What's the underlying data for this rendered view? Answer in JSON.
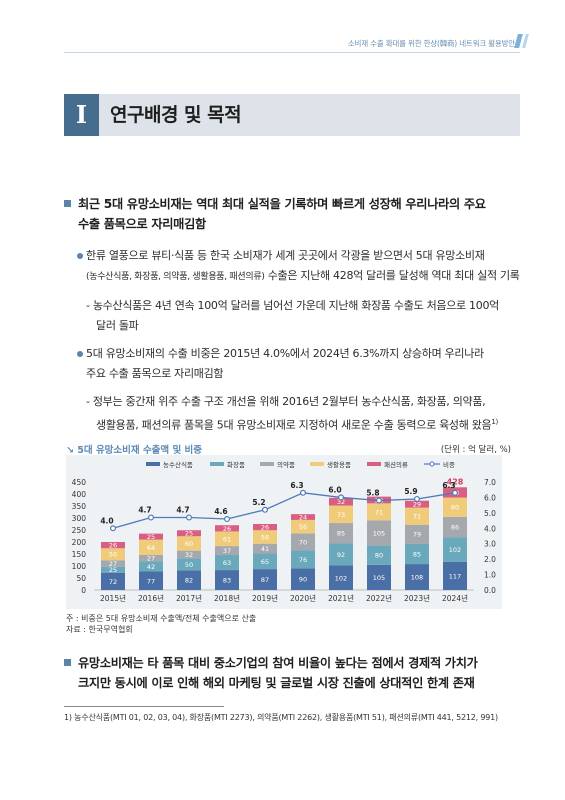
{
  "header": {
    "running_title": "소비재 수출 확대를 위한 한상(韓商) 네트워크 활용방안"
  },
  "section": {
    "number": "I",
    "title": "연구배경 및 목적"
  },
  "point1": {
    "line1": "최근 5대 유망소비재는 역대 최대 실적을 기록하며 빠르게 성장해 우리나라의 주요",
    "line2": "수출 품목으로 자리매김함",
    "sub1": {
      "line1": "한류 열풍으로 뷰티·식품 등 한국 소비재가 세계 곳곳에서 각광을 받으면서 5대 유망소비재",
      "line2a": "(농수산식품, 화장품, 의약품, 생활용품, 패션의류)",
      "line2b": " 수출은 지난해 428억 달러를 달성해 역대 최대 실적 기록",
      "dash1": "- 농수산식품은 4년 연속 100억 달러를 넘어선 가운데 지난해 화장품 수출도 처음으로 100억",
      "dash2": "달러 돌파"
    },
    "sub2": {
      "line1": "5대 유망소비재의 수출 비중은 2015년 4.0%에서 2024년 6.3%까지 상승하며 우리나라",
      "line2": "주요 수출 품목으로 자리매김함",
      "dash1": "- 정부는 중간재 위주 수출 구조 개선을 위해 2016년 2월부터 농수산식품, 화장품, 의약품,",
      "dash2": "생활용품, 패션의류 품목을 5대 유망소비재로 지정하여 새로운 수출 동력으로 육성해 왔음",
      "footnote_ref": "1)"
    }
  },
  "chart_caption": {
    "title": "5대 유망소비재 수출액 및 비중",
    "unit": "(단위 : 억 달러, %)"
  },
  "chart_data": {
    "type": "bar",
    "stacked": true,
    "categories": [
      "2015년",
      "2016년",
      "2017년",
      "2018년",
      "2019년",
      "2020년",
      "2021년",
      "2022년",
      "2023년",
      "2024년"
    ],
    "series": [
      {
        "name": "농수산식품",
        "color": "#4a6fa6",
        "values": [
          72,
          77,
          82,
          83,
          87,
          90,
          102,
          105,
          108,
          117
        ]
      },
      {
        "name": "화장품",
        "color": "#6aa8bb",
        "values": [
          25,
          42,
          50,
          63,
          65,
          76,
          92,
          80,
          85,
          102
        ]
      },
      {
        "name": "의약품",
        "color": "#a5a8ad",
        "values": [
          27,
          27,
          32,
          37,
          41,
          70,
          85,
          105,
          79,
          86
        ]
      },
      {
        "name": "생활용품",
        "color": "#f0cc7a",
        "values": [
          50,
          64,
          60,
          61,
          56,
          56,
          73,
          71,
          71,
          80
        ]
      },
      {
        "name": "패션의류",
        "color": "#d95f82",
        "values": [
          26,
          25,
          25,
          26,
          26,
          24,
          32,
          28,
          29,
          43
        ]
      }
    ],
    "line_series": {
      "name": "비중",
      "color": "#4f7ab8",
      "values": [
        4.0,
        4.7,
        4.7,
        4.6,
        5.2,
        6.3,
        6.0,
        5.8,
        5.9,
        6.3
      ]
    },
    "total_label_2024": "428",
    "y_left": {
      "ticks": [
        "0",
        "50",
        "100",
        "150",
        "200",
        "250",
        "300",
        "350",
        "400",
        "450"
      ],
      "max": 450
    },
    "y_right": {
      "ticks": [
        "0.0",
        "1.0",
        "2.0",
        "3.0",
        "4.0",
        "5.0",
        "6.0",
        "7.0"
      ],
      "max": 7
    },
    "legend_position": "top"
  },
  "chart_notes": {
    "note": "주 : 비중은 5대 유망소비재 수출액/전체 수출액으로 산출",
    "source": "자료 : 한국무역협회"
  },
  "point2": {
    "line1": "유망소비재는 타 품목 대비 중소기업의 참여 비율이 높다는 점에서 경제적 가치가",
    "line2": "크지만 동시에 이로 인해 해외 마케팅 및 글로벌 시장 진출에 상대적인 한계 존재"
  },
  "footnote": "1) 농수산식품(MTI 01, 02, 03, 04), 화장품(MTI 2273), 의약품(MTI 2262), 생활용품(MTI 51), 패션의류(MTI 441, 5212, 991)"
}
